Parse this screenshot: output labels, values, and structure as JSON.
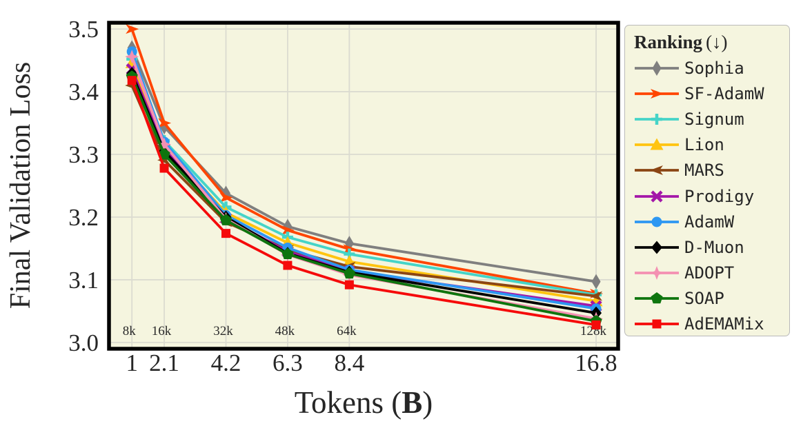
{
  "figure": {
    "background": "#FFFFFF"
  },
  "chart_data": {
    "type": "line",
    "title": "",
    "xlabel": "Tokens (B)",
    "xlabel_parts": {
      "prefix": "Tokens (",
      "bold": "B",
      "suffix": ")"
    },
    "ylabel": "Final Validation Loss",
    "x": [
      1,
      2.1,
      4.2,
      6.3,
      8.4,
      16.8
    ],
    "x_tick_labels": [
      "1",
      "2.1",
      "4.2",
      "6.3",
      "8.4",
      "16.8"
    ],
    "y_ticks": [
      3.0,
      3.1,
      3.2,
      3.3,
      3.4,
      3.5
    ],
    "y_tick_labels": [
      "3.0",
      "3.1",
      "3.2",
      "3.3",
      "3.4",
      "3.5"
    ],
    "xlim": [
      0.22,
      17.55
    ],
    "ylim": [
      2.99,
      3.51
    ],
    "grid": true,
    "legend": {
      "title": "Ranking",
      "title_suffix": "(↓)",
      "position": "right"
    },
    "step_annotations": [
      {
        "label": "8k",
        "x": 1
      },
      {
        "label": "16k",
        "x": 2.1
      },
      {
        "label": "32k",
        "x": 4.2
      },
      {
        "label": "48k",
        "x": 6.3
      },
      {
        "label": "64k",
        "x": 8.4
      },
      {
        "label": "128k",
        "x": 16.8
      }
    ],
    "series": [
      {
        "name": "Sophia",
        "color": "#7F7F7F",
        "marker": "thin-diamond",
        "values": [
          3.47,
          3.344,
          3.238,
          3.185,
          3.158,
          3.097
        ]
      },
      {
        "name": "SF-AdamW",
        "color": "#FF4500",
        "marker": "arrow-right",
        "values": [
          3.5,
          3.35,
          3.231,
          3.179,
          3.149,
          3.078
        ]
      },
      {
        "name": "Signum",
        "color": "#45D4C8",
        "marker": "plus",
        "values": [
          3.452,
          3.322,
          3.216,
          3.168,
          3.141,
          3.076
        ]
      },
      {
        "name": "Lion",
        "color": "#FFC410",
        "marker": "triangle-up",
        "values": [
          3.446,
          3.314,
          3.207,
          3.159,
          3.129,
          3.066
        ]
      },
      {
        "name": "MARS",
        "color": "#8B4513",
        "marker": "arrow-left",
        "values": [
          3.41,
          3.291,
          3.192,
          3.148,
          3.121,
          3.074
        ]
      },
      {
        "name": "Prodigy",
        "color": "#A316A8",
        "marker": "x",
        "values": [
          3.436,
          3.309,
          3.198,
          3.145,
          3.114,
          3.058
        ]
      },
      {
        "name": "AdamW",
        "color": "#2D97F2",
        "marker": "circle",
        "values": [
          3.464,
          3.32,
          3.203,
          3.151,
          3.116,
          3.054
        ]
      },
      {
        "name": "D-Muon",
        "color": "#000000",
        "marker": "diamond",
        "values": [
          3.429,
          3.305,
          3.2,
          3.142,
          3.112,
          3.047
        ]
      },
      {
        "name": "ADOPT",
        "color": "#F490B2",
        "marker": "star4",
        "values": [
          3.456,
          3.316,
          3.197,
          3.14,
          3.108,
          3.038
        ]
      },
      {
        "name": "SOAP",
        "color": "#0E750E",
        "marker": "pentagon",
        "values": [
          3.424,
          3.3,
          3.195,
          3.141,
          3.11,
          3.034
        ]
      },
      {
        "name": "AdEMAMix",
        "color": "#F50A0A",
        "marker": "square",
        "values": [
          3.418,
          3.278,
          3.174,
          3.123,
          3.092,
          3.028
        ]
      }
    ],
    "colors": {
      "plot_background": "#F5F5DF",
      "gridline": "#DBDBD0",
      "border": "#000000",
      "text": "#262626",
      "legend_border": "#B9B9B9"
    }
  }
}
